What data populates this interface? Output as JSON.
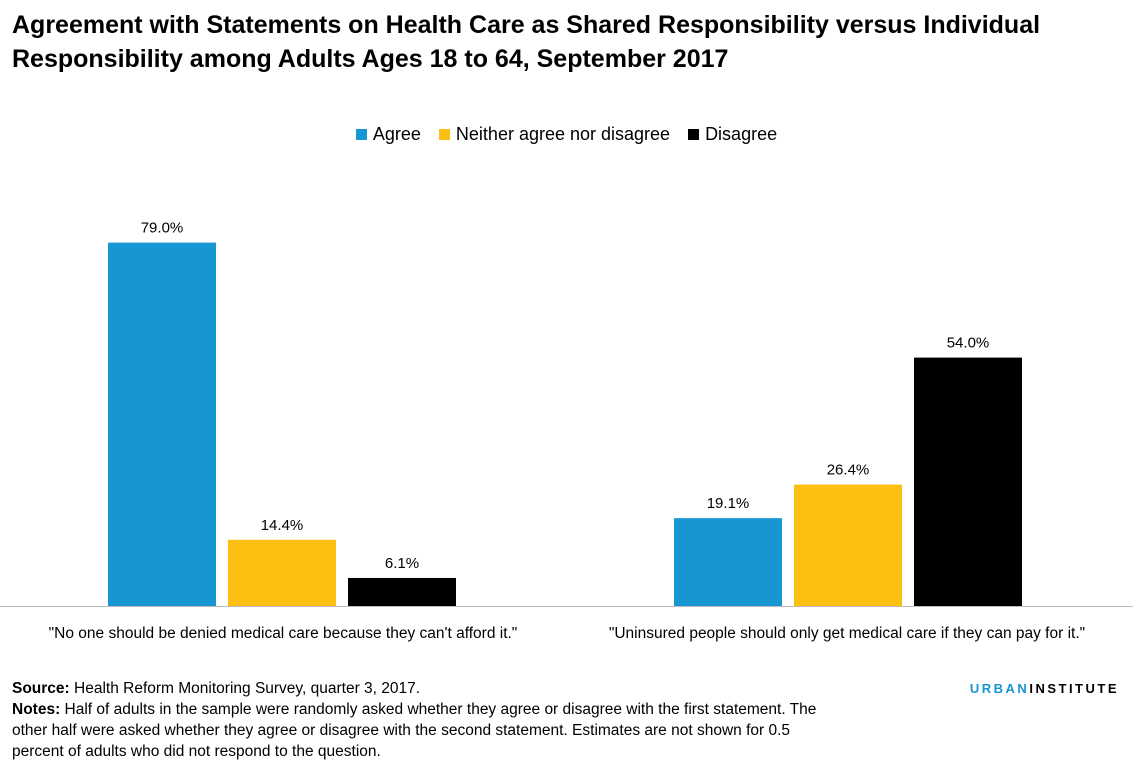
{
  "title_line1": "Agreement with Statements on Health Care as Shared Responsibility versus Individual",
  "title_line2": "Responsibility among Adults Ages 18 to 64, September 2017",
  "footer": {
    "source_label": "Source:",
    "source_text": "Health Reform Monitoring Survey, quarter 3, 2017.",
    "notes_label": "Notes:",
    "notes_text": "Half of adults in the sample were randomly asked whether they agree or disagree with the first statement. The other half were asked whether they agree or disagree with the second statement. Estimates are not shown for 0.5 percent of adults who did not respond to the question."
  },
  "brand": {
    "part1": "URBAN",
    "part2": "INSTITUTE"
  },
  "chart_data": {
    "type": "bar",
    "title": "Agreement with Statements on Health Care as Shared Responsibility versus Individual Responsibility among Adults Ages 18 to 64, September 2017",
    "categories": [
      "\"No one should be denied medical care because they can't afford it.\"",
      "\"Uninsured people should only get medical care if they can pay for it.\""
    ],
    "series": [
      {
        "name": "Agree",
        "color": "#1696d2",
        "values": [
          79.0,
          19.1
        ],
        "labels": [
          "79.0%",
          "19.1%"
        ]
      },
      {
        "name": "Neither agree nor disagree",
        "color": "#fdbf11",
        "values": [
          14.4,
          26.4
        ],
        "labels": [
          "14.4%",
          "26.4%"
        ]
      },
      {
        "name": "Disagree",
        "color": "#000000",
        "values": [
          6.1,
          54.0
        ],
        "labels": [
          "6.1%",
          "54.0%"
        ]
      }
    ],
    "ylim": [
      0,
      80
    ],
    "grid": false,
    "legend": "top-center",
    "xlabel": "",
    "ylabel": ""
  }
}
